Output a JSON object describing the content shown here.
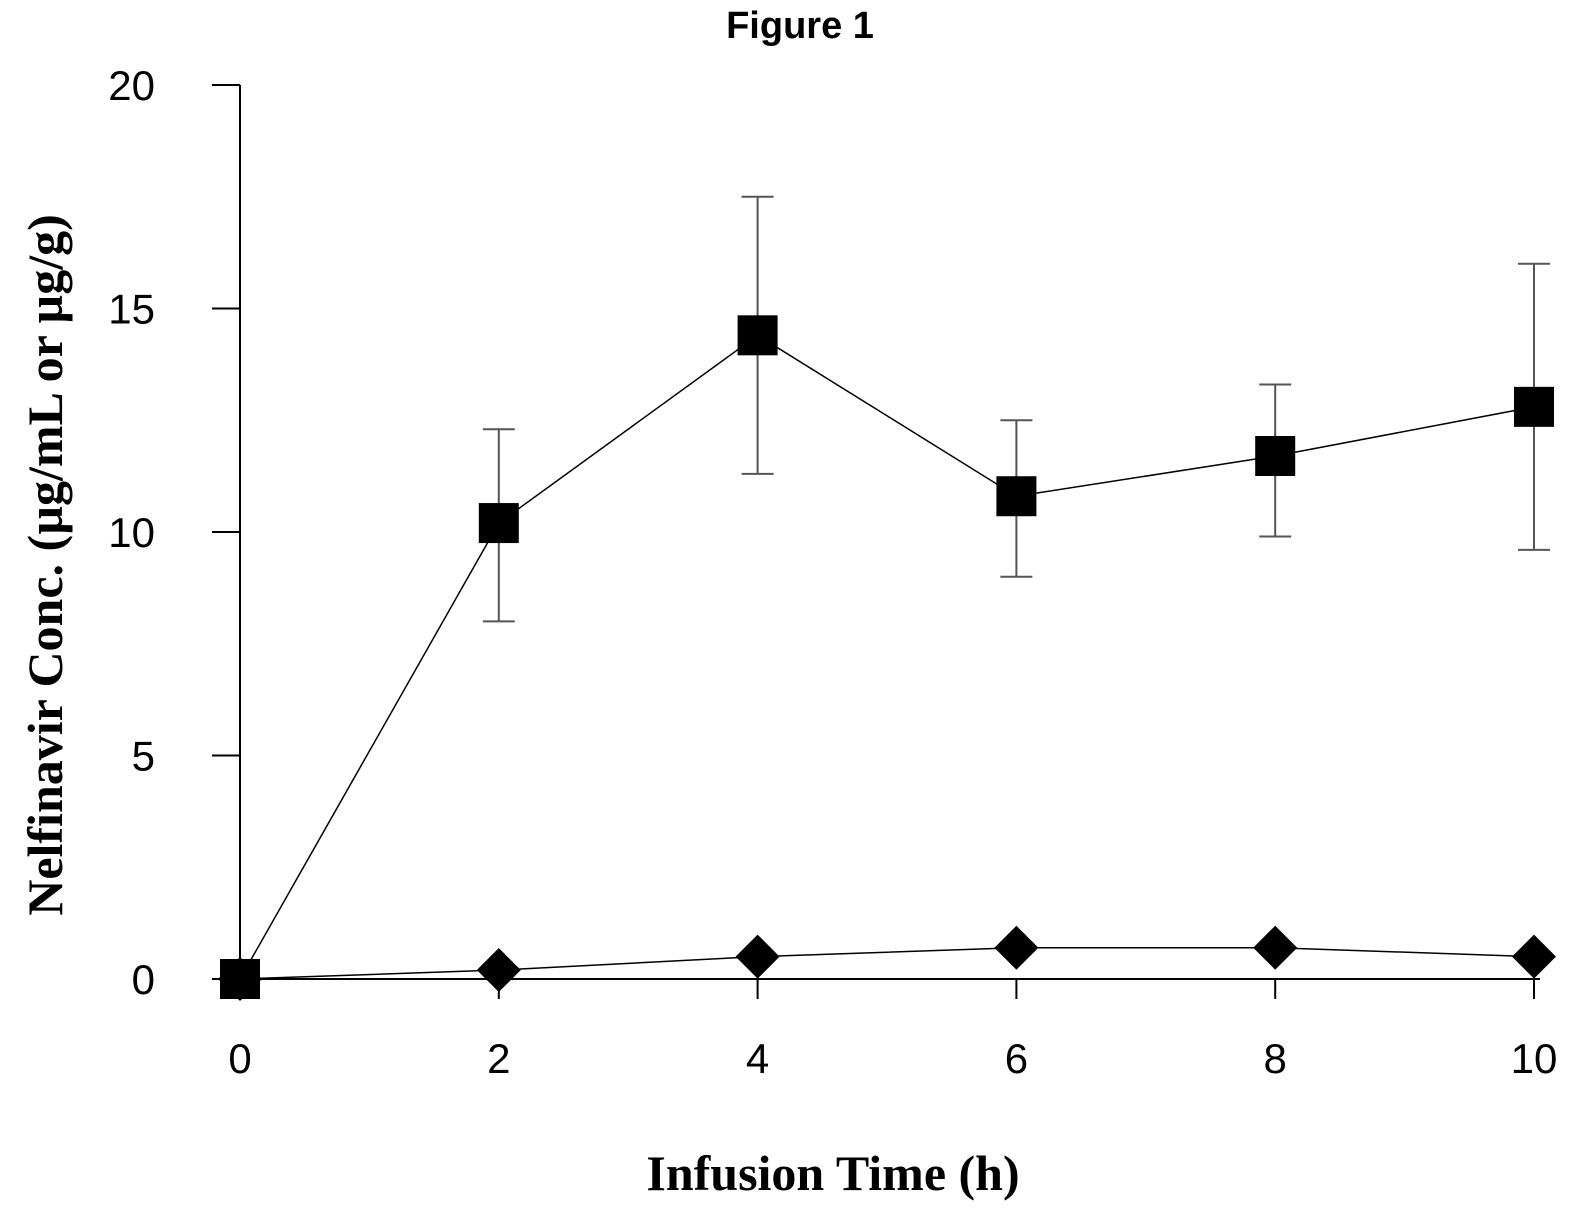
{
  "chart_data": {
    "type": "line",
    "title": "Figure 1",
    "xlabel": "Infusion Time (h)",
    "ylabel": "Nelfinavir Conc. (µg/mL or µg/g)",
    "xlim": [
      0,
      10
    ],
    "ylim": [
      0,
      20
    ],
    "x_ticks": [
      "0",
      "2",
      "4",
      "6",
      "8",
      "10"
    ],
    "y_ticks": [
      "0",
      "5",
      "10",
      "15",
      "20"
    ],
    "grid": false,
    "legend": "none",
    "series": [
      {
        "marker": "square",
        "x": [
          0,
          2,
          4,
          6,
          8,
          10
        ],
        "y": [
          0,
          10.2,
          14.4,
          10.8,
          11.7,
          12.8
        ],
        "err_high": [
          null,
          12.3,
          17.5,
          12.5,
          13.3,
          16.0
        ],
        "err_low": [
          null,
          8.0,
          11.3,
          9.0,
          9.9,
          9.6
        ]
      },
      {
        "marker": "diamond",
        "x": [
          0,
          2,
          4,
          6,
          8,
          10
        ],
        "y": [
          0,
          0.2,
          0.5,
          0.7,
          0.7,
          0.5
        ]
      }
    ],
    "colors": {
      "line": "#000000",
      "error_bar": "#555555",
      "axis": "#000000"
    }
  }
}
